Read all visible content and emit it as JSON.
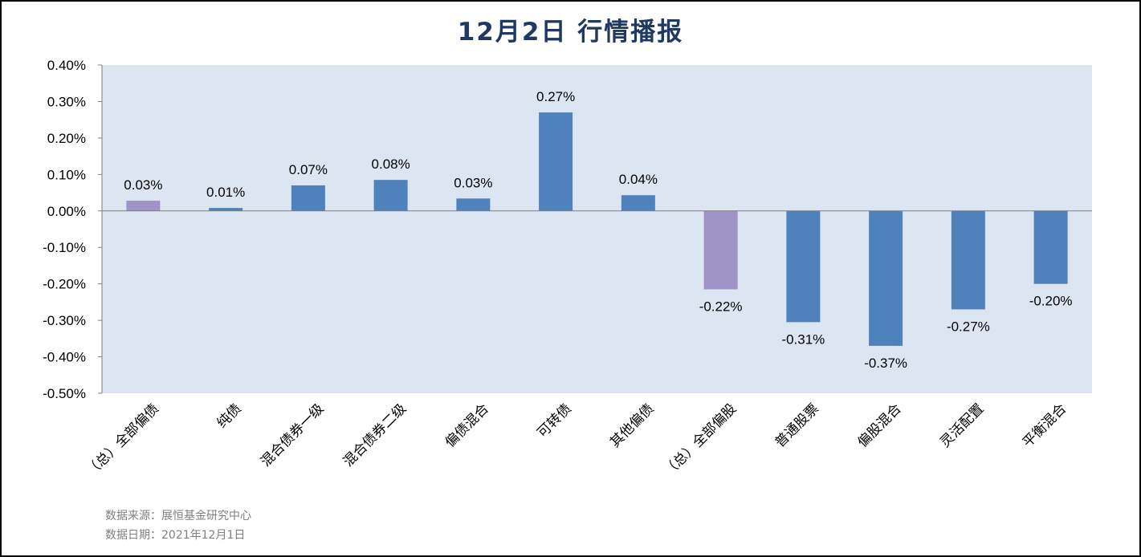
{
  "title": "12月2日  行情播报",
  "source_line": "数据来源：展恒基金研究中心",
  "date_line": "数据日期：2021年12月1日",
  "colors": {
    "plot_bg": "#dce6f2",
    "bar_blue": "#4f81bd",
    "bar_purple": "#a093c6",
    "title": "#1f3864"
  },
  "chart_data": {
    "type": "bar",
    "categories": [
      "（总）全部偏债",
      "纯债",
      "混合债券一级",
      "混合债券二级",
      "偏债混合",
      "可转债",
      "其他偏债",
      "（总）全部偏股",
      "普通股票",
      "偏股混合",
      "灵活配置",
      "平衡混合"
    ],
    "values": [
      0.03,
      0.01,
      0.07,
      0.08,
      0.03,
      0.27,
      0.04,
      -0.22,
      -0.31,
      -0.37,
      -0.27,
      -0.2
    ],
    "bar_values": [
      0.028,
      0.008,
      0.07,
      0.085,
      0.034,
      0.27,
      0.043,
      -0.215,
      -0.305,
      -0.37,
      -0.27,
      -0.2
    ],
    "data_labels": [
      "0.03%",
      "0.01%",
      "0.07%",
      "0.08%",
      "0.03%",
      "0.27%",
      "0.04%",
      "-0.22%",
      "-0.31%",
      "-0.37%",
      "-0.27%",
      "-0.20%"
    ],
    "highlight": [
      true,
      false,
      false,
      false,
      false,
      false,
      false,
      true,
      false,
      false,
      false,
      false
    ],
    "ylim": [
      -0.5,
      0.4
    ],
    "yticks": [
      0.4,
      0.3,
      0.2,
      0.1,
      0.0,
      -0.1,
      -0.2,
      -0.3,
      -0.4,
      -0.5
    ],
    "ytick_labels": [
      "0.40%",
      "0.30%",
      "0.20%",
      "0.10%",
      "0.00%",
      "-0.10%",
      "-0.20%",
      "-0.30%",
      "-0.40%",
      "-0.50%"
    ],
    "grid": false,
    "legend": "none"
  }
}
